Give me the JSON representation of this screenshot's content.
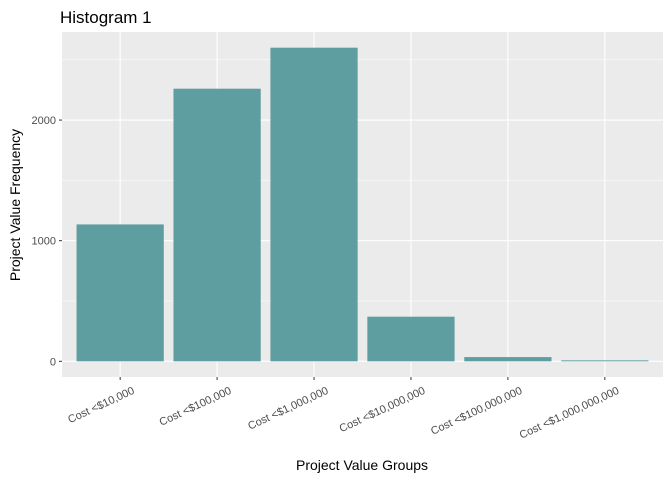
{
  "chart_data": {
    "type": "bar",
    "title": "Histogram 1",
    "xlabel": "Project Value Groups",
    "ylabel": "Project Value Frequency",
    "categories": [
      "Cost <$10,000",
      "Cost <$100,000",
      "Cost <$1,000,000",
      "Cost <$10,000,000",
      "Cost <$100,000,000",
      "Cost <$1,000,000,000"
    ],
    "values": [
      1135,
      2260,
      2600,
      370,
      35,
      8
    ],
    "yticks": [
      0,
      1000,
      2000
    ],
    "ytick_labels": [
      "0",
      "1000",
      "2000"
    ],
    "ylim": [
      -130,
      2730
    ],
    "grid": true,
    "legend": "none",
    "colors": {
      "bar": "#5F9EA0",
      "panel": "#EBEBEB",
      "grid": "#FFFFFF",
      "tick_text": "#4D4D4D",
      "tick_mark": "#333333"
    }
  }
}
